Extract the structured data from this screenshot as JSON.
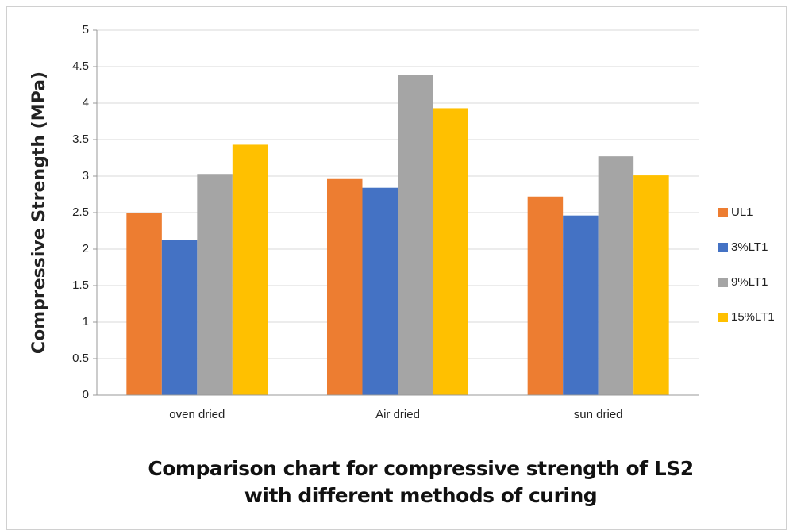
{
  "chart_data": {
    "type": "bar",
    "title": "Comparison chart for compressive strength of LS2 with different methods of curing",
    "y_label": "Compressive Strength (MPa)",
    "categories": [
      "oven dried",
      "Air dried",
      "sun dried"
    ],
    "series": [
      {
        "name": "UL1",
        "color": "#ed7d31",
        "values": [
          2.5,
          2.97,
          2.72
        ]
      },
      {
        "name": "3%LT1",
        "color": "#4472c4",
        "values": [
          2.13,
          2.84,
          2.46
        ]
      },
      {
        "name": "9%LT1",
        "color": "#a5a5a5",
        "values": [
          3.03,
          4.39,
          3.27
        ]
      },
      {
        "name": "15%LT1",
        "color": "#ffc000",
        "values": [
          3.43,
          3.93,
          3.01
        ]
      }
    ],
    "ylim": [
      0,
      5
    ],
    "yticks": [
      0,
      0.5,
      1,
      1.5,
      2,
      2.5,
      3,
      3.5,
      4,
      4.5,
      5
    ],
    "grid": true,
    "legend": "right"
  }
}
